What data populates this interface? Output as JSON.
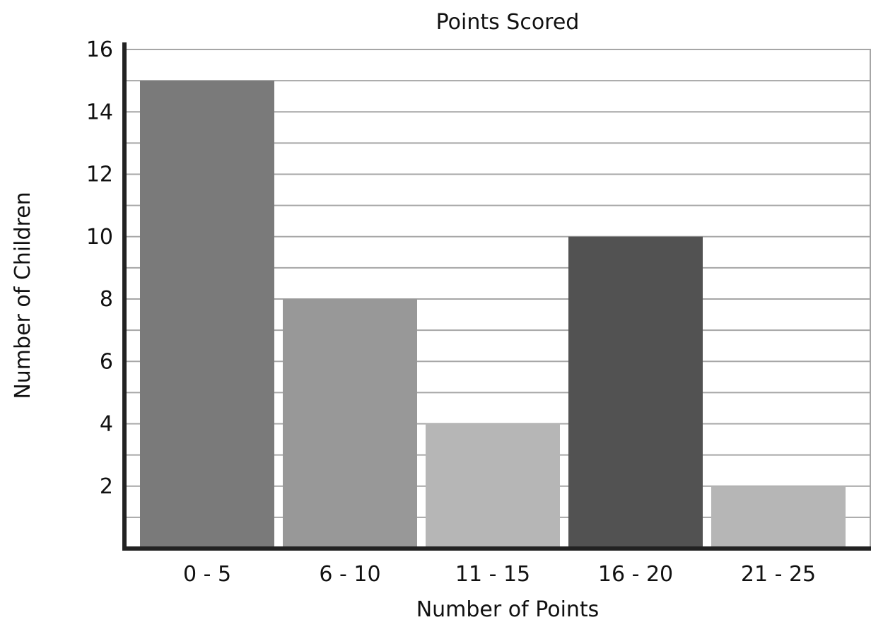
{
  "chart_data": {
    "type": "bar",
    "title": "Points Scored",
    "xlabel": "Number of Points",
    "ylabel": "Number of Children",
    "categories": [
      "0 - 5",
      "6 - 10",
      "11 - 15",
      "16 - 20",
      "21 - 25"
    ],
    "values": [
      15,
      8,
      4,
      10,
      2
    ],
    "bar_colors": [
      "#7a7a7a",
      "#989898",
      "#b6b6b6",
      "#525252",
      "#b6b6b6"
    ],
    "ylim": [
      0,
      16
    ],
    "yticks": [
      2,
      4,
      6,
      8,
      10,
      12,
      14,
      16
    ],
    "minor_grid_step": 1,
    "grid": true,
    "grid_color": "#a6a6a6",
    "axis_color": "#222222"
  }
}
